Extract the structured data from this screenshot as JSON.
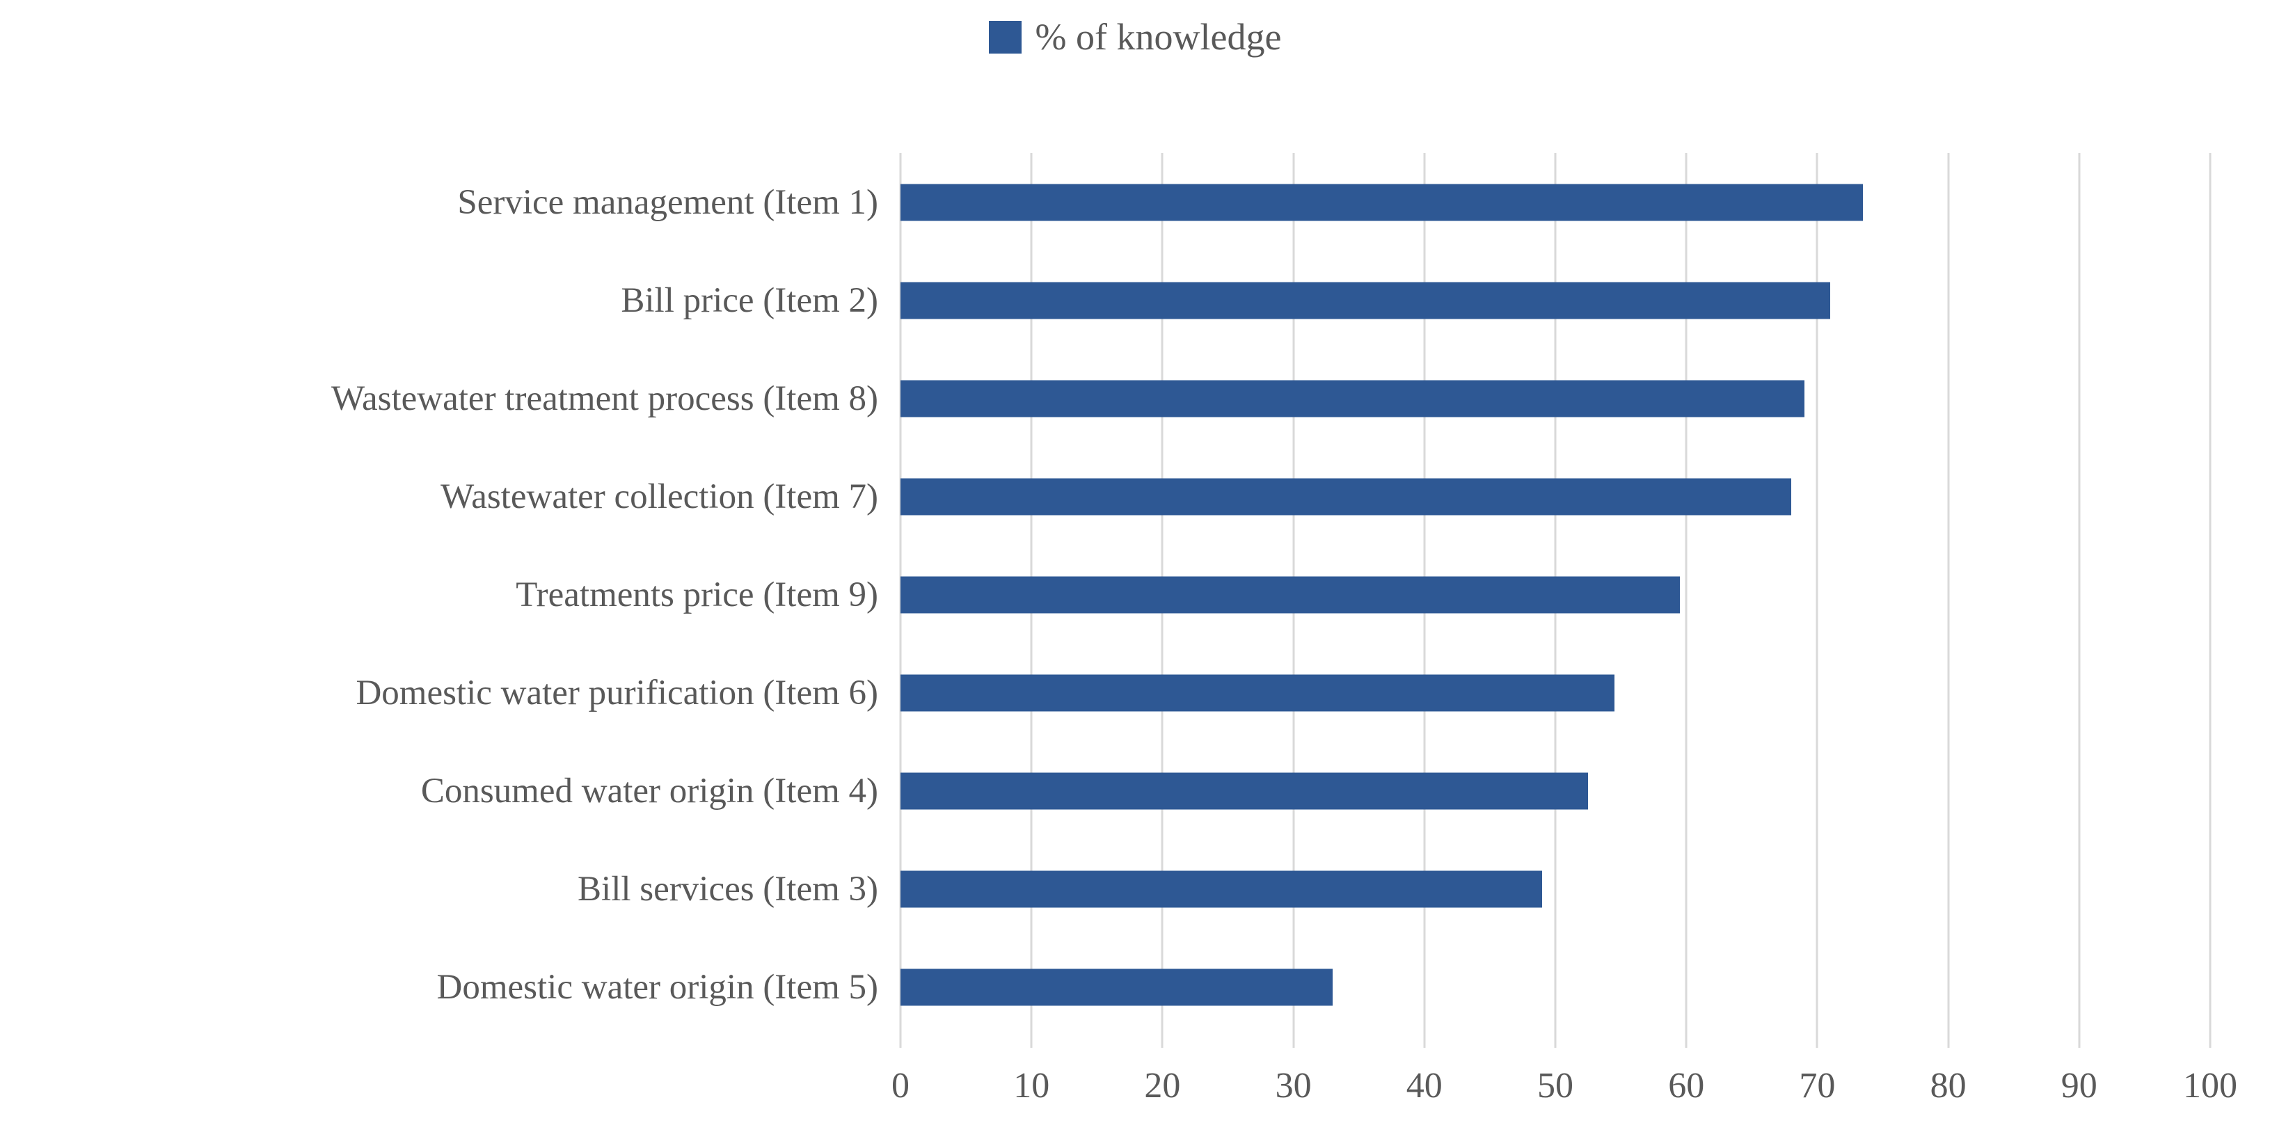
{
  "chart_data": {
    "type": "bar",
    "orientation": "horizontal",
    "title": "",
    "legend": {
      "label": "% of knowledge",
      "position": "top-center"
    },
    "categories": [
      "Service management (Item 1)",
      "Bill price (Item 2)",
      "Wastewater treatment process (Item 8)",
      "Wastewater collection (Item 7)",
      "Treatments price (Item 9)",
      "Domestic water purification (Item 6)",
      "Consumed water origin (Item 4)",
      "Bill services (Item 3)",
      "Domestic water origin (Item 5)"
    ],
    "series": [
      {
        "name": "% of knowledge",
        "values": [
          73.5,
          71,
          69,
          68,
          59.5,
          54.5,
          52.5,
          49,
          33
        ]
      }
    ],
    "xlim": [
      0,
      100
    ],
    "xticks": [
      0,
      10,
      20,
      30,
      40,
      50,
      60,
      70,
      80,
      90,
      100
    ],
    "grid": "vertical-only",
    "colors": {
      "bar": "#2E5894",
      "gridline": "#D9D9D9",
      "text": "#595959",
      "background": "#FFFFFF"
    }
  }
}
